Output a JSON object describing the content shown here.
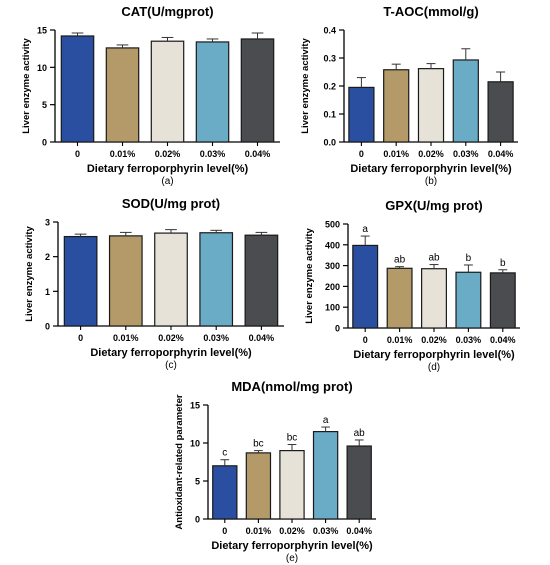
{
  "figure": {
    "bar_colors": [
      "#2a4fa0",
      "#b39a68",
      "#e6e2d8",
      "#6aabc6",
      "#4a4c50"
    ]
  },
  "chart_data": [
    {
      "id": "a",
      "type": "bar",
      "title": "CAT(U/mgprot)",
      "xlabel": "Dietary ferroporphyrin level(%)",
      "ylabel": "Liver enzyme activity",
      "panel_label": "(a)",
      "categories": [
        "0",
        "0.01%",
        "0.02%",
        "0.03%",
        "0.04%"
      ],
      "values": [
        14.2,
        12.6,
        13.5,
        13.4,
        13.8
      ],
      "errors": [
        0.4,
        0.4,
        0.5,
        0.4,
        0.8
      ],
      "significance": [
        "",
        "",
        "",
        "",
        ""
      ],
      "ylim": [
        0,
        15
      ],
      "yticks": [
        0,
        5,
        10,
        15
      ],
      "ytick_labels": [
        "0",
        "5",
        "10",
        "15"
      ]
    },
    {
      "id": "b",
      "type": "bar",
      "title": "T-AOC(mmol/g)",
      "xlabel": "Dietary ferroporphyrin level(%)",
      "ylabel": "Liver enzyme activity",
      "panel_label": "(b)",
      "categories": [
        "0",
        "0.01%",
        "0.02%",
        "0.03%",
        "0.04%"
      ],
      "values": [
        0.195,
        0.258,
        0.262,
        0.293,
        0.215
      ],
      "errors": [
        0.035,
        0.02,
        0.018,
        0.04,
        0.035
      ],
      "significance": [
        "",
        "",
        "",
        "",
        ""
      ],
      "ylim": [
        0,
        0.4
      ],
      "yticks": [
        0,
        0.1,
        0.2,
        0.3,
        0.4
      ],
      "ytick_labels": [
        "0.0",
        "0.1",
        "0.2",
        "0.3",
        "0.4"
      ]
    },
    {
      "id": "c",
      "type": "bar",
      "title": "SOD(U/mg prot)",
      "xlabel": "Dietary ferroporphyrin level(%)",
      "ylabel": "Liver enzyme activity",
      "panel_label": "(c)",
      "categories": [
        "0",
        "0.01%",
        "0.02%",
        "0.03%",
        "0.04%"
      ],
      "values": [
        2.58,
        2.6,
        2.68,
        2.69,
        2.62
      ],
      "errors": [
        0.07,
        0.1,
        0.1,
        0.07,
        0.08
      ],
      "significance": [
        "",
        "",
        "",
        "",
        ""
      ],
      "ylim": [
        0,
        3
      ],
      "yticks": [
        0,
        1,
        2,
        3
      ],
      "ytick_labels": [
        "0",
        "1",
        "2",
        "3"
      ]
    },
    {
      "id": "d",
      "type": "bar",
      "title": "GPX(U/mg prot)",
      "xlabel": "Dietary ferroporphyrin level(%)",
      "ylabel": "Liver enzyme activity",
      "panel_label": "(d)",
      "categories": [
        "0",
        "0.01%",
        "0.02%",
        "0.03%",
        "0.04%"
      ],
      "values": [
        397,
        287,
        285,
        268,
        265
      ],
      "errors": [
        45,
        8,
        20,
        35,
        15
      ],
      "significance": [
        "a",
        "ab",
        "ab",
        "b",
        "b"
      ],
      "ylim": [
        0,
        500
      ],
      "yticks": [
        0,
        100,
        200,
        300,
        400,
        500
      ],
      "ytick_labels": [
        "0",
        "100",
        "200",
        "300",
        "400",
        "500"
      ]
    },
    {
      "id": "e",
      "type": "bar",
      "title": "MDA(nmol/mg prot)",
      "xlabel": "Dietary ferroporphyrin level(%)",
      "ylabel": "Antioxidant-related parameter",
      "panel_label": "(e)",
      "categories": [
        "0",
        "0.01%",
        "0.02%",
        "0.03%",
        "0.04%"
      ],
      "values": [
        7.0,
        8.7,
        9.0,
        11.5,
        9.6
      ],
      "errors": [
        0.8,
        0.3,
        0.8,
        0.6,
        0.8
      ],
      "significance": [
        "c",
        "bc",
        "bc",
        "a",
        "ab"
      ],
      "ylim": [
        0,
        15
      ],
      "yticks": [
        0,
        5,
        10,
        15
      ],
      "ytick_labels": [
        "0",
        "5",
        "10",
        "15"
      ]
    }
  ]
}
